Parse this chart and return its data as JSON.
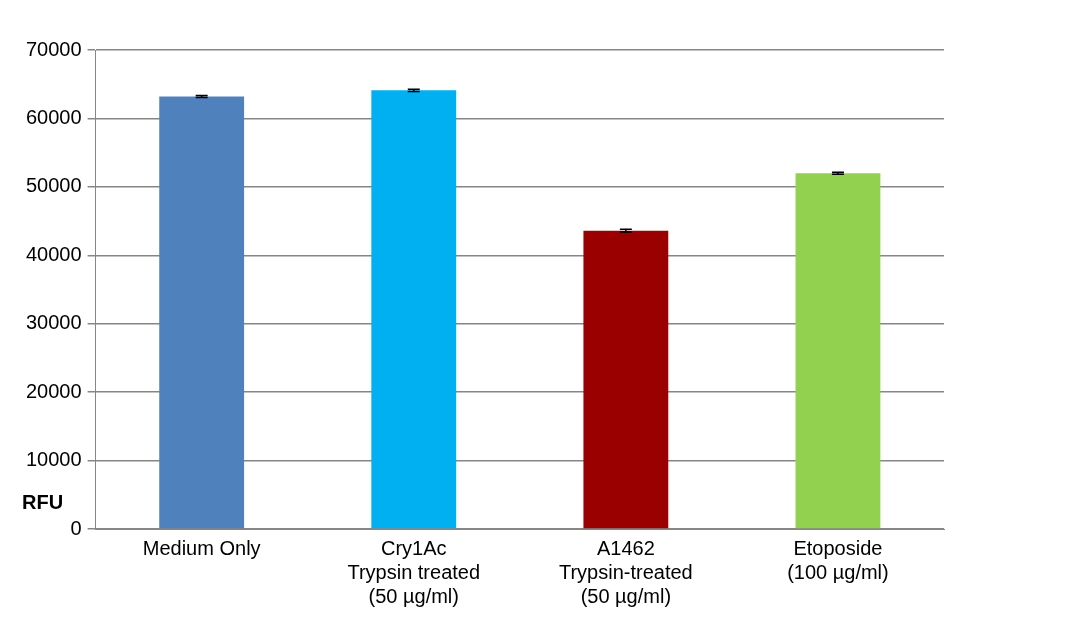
{
  "chart_data": {
    "type": "bar",
    "ylabel": "RFU",
    "categories": [
      "Medium Only",
      "Cry1Ac\nTrypsin treated\n(50 µg/ml)",
      "A1462\nTrypsin-treated\n(50 µg/ml)",
      "Etoposide\n(100 µg/ml)"
    ],
    "values": [
      63200,
      64100,
      43600,
      52000
    ],
    "colors": [
      "#4f81bd",
      "#00b0f0",
      "#9b0000",
      "#92d050"
    ],
    "errors": [
      150,
      150,
      200,
      150
    ],
    "ylim": [
      0,
      70000
    ],
    "yticks": [
      0,
      10000,
      20000,
      30000,
      40000,
      50000,
      60000,
      70000
    ],
    "grid": "y",
    "legend": false
  }
}
